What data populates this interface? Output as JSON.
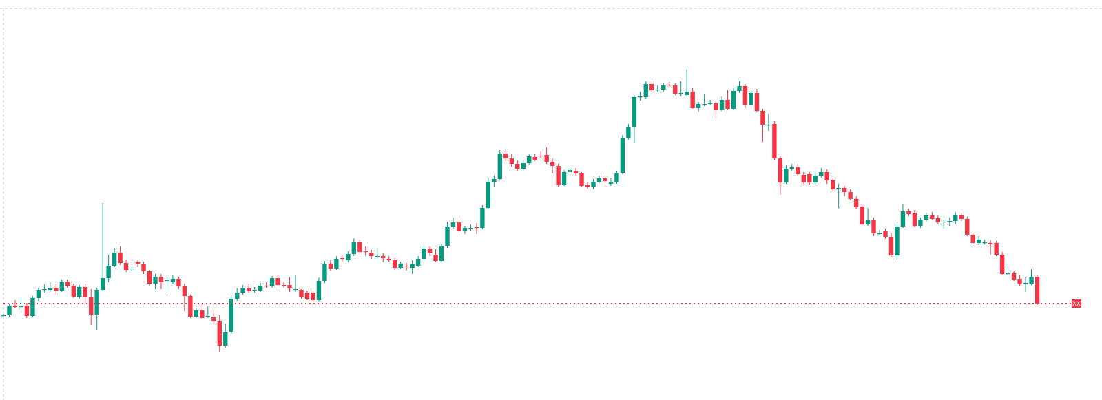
{
  "chart_data": {
    "type": "candlestick",
    "up_color": "#089981",
    "down_color": "#f23645",
    "ylim": [
      19,
      600
    ],
    "last_price_label": "XX",
    "open": [
      141,
      142,
      156,
      155,
      156,
      141,
      167,
      179,
      179,
      182,
      178,
      191,
      185,
      169,
      183,
      168,
      143,
      179,
      196,
      214,
      233,
      218,
      209,
      219,
      216,
      206,
      188,
      198,
      193,
      190,
      195,
      184,
      170,
      140,
      149,
      140,
      139,
      134,
      98,
      118,
      166,
      175,
      181,
      178,
      178,
      185,
      185,
      196,
      186,
      186,
      180,
      179,
      175,
      175,
      164,
      192,
      217,
      210,
      225,
      222,
      231,
      248,
      235,
      233,
      228,
      228,
      224,
      222,
      211,
      214,
      211,
      214,
      224,
      239,
      230,
      221,
      243,
      271,
      277,
      264,
      269,
      270,
      269,
      298,
      336,
      340,
      377,
      370,
      362,
      355,
      363,
      372,
      374,
      375,
      365,
      359,
      331,
      350,
      352,
      348,
      331,
      328,
      336,
      341,
      333,
      335,
      349,
      400,
      416,
      460,
      459,
      478,
      470,
      470,
      477,
      476,
      465,
      462,
      467,
      443,
      449,
      449,
      450,
      440,
      455,
      442,
      468,
      475,
      448,
      465,
      439,
      419,
      420,
      370,
      335,
      355,
      357,
      346,
      347,
      335,
      345,
      350,
      338,
      327,
      327,
      321,
      311,
      300,
      274,
      280,
      261,
      264,
      256,
      229,
      271,
      293,
      291,
      272,
      281,
      287,
      283,
      278,
      279,
      279,
      288,
      282,
      259,
      247,
      248,
      247,
      247,
      230,
      203,
      203,
      195,
      189,
      187,
      198
    ],
    "high": [
      144,
      159,
      164,
      168,
      160,
      170,
      182,
      187,
      190,
      187,
      194,
      194,
      188,
      186,
      188,
      180,
      182,
      305,
      230,
      240,
      242,
      222,
      212,
      223,
      220,
      208,
      202,
      202,
      198,
      200,
      198,
      188,
      172,
      153,
      159,
      155,
      150,
      142,
      130,
      170,
      182,
      186,
      188,
      183,
      189,
      190,
      199,
      200,
      190,
      197,
      200,
      180,
      178,
      178,
      197,
      221,
      222,
      228,
      230,
      235,
      254,
      252,
      242,
      237,
      240,
      232,
      228,
      225,
      220,
      218,
      222,
      228,
      244,
      242,
      238,
      246,
      278,
      284,
      282,
      272,
      274,
      276,
      302,
      342,
      345,
      382,
      380,
      376,
      368,
      368,
      376,
      376,
      380,
      386,
      370,
      362,
      353,
      358,
      356,
      350,
      335,
      340,
      345,
      345,
      342,
      351,
      404,
      420,
      462,
      467,
      482,
      482,
      476,
      480,
      481,
      480,
      482,
      499,
      472,
      452,
      464,
      455,
      455,
      460,
      470,
      472,
      482,
      478,
      470,
      471,
      442,
      435,
      424,
      373,
      360,
      362,
      362,
      350,
      350,
      350,
      356,
      354,
      342,
      333,
      330,
      325,
      315,
      304,
      298,
      284,
      266,
      268,
      262,
      274,
      304,
      297,
      295,
      284,
      291,
      292,
      287,
      282,
      284,
      292,
      291,
      285,
      261,
      257,
      252,
      251,
      250,
      234,
      213,
      207,
      200,
      197,
      209,
      200
    ],
    "low": [
      139,
      140,
      152,
      150,
      138,
      139,
      163,
      175,
      176,
      173,
      176,
      182,
      167,
      166,
      160,
      128,
      120,
      177,
      190,
      212,
      215,
      205,
      207,
      212,
      202,
      185,
      180,
      180,
      175,
      188,
      180,
      148,
      138,
      138,
      136,
      138,
      130,
      88,
      95,
      115,
      163,
      172,
      175,
      175,
      176,
      182,
      182,
      182,
      182,
      176,
      176,
      166,
      164,
      163,
      162,
      189,
      207,
      208,
      220,
      219,
      228,
      230,
      228,
      224,
      224,
      219,
      220,
      208,
      209,
      207,
      202,
      212,
      222,
      228,
      219,
      219,
      240,
      268,
      262,
      260,
      265,
      260,
      267,
      296,
      328,
      338,
      366,
      358,
      352,
      353,
      360,
      366,
      370,
      362,
      348,
      329,
      330,
      348,
      344,
      328,
      326,
      325,
      334,
      329,
      330,
      333,
      347,
      397,
      392,
      454,
      456,
      466,
      466,
      467,
      473,
      462,
      460,
      460,
      442,
      438,
      446,
      448,
      428,
      438,
      440,
      440,
      465,
      443,
      445,
      437,
      394,
      410,
      368,
      317,
      333,
      352,
      344,
      333,
      332,
      333,
      342,
      333,
      322,
      297,
      315,
      309,
      296,
      272,
      272,
      257,
      258,
      253,
      227,
      223,
      269,
      286,
      270,
      269,
      278,
      280,
      275,
      268,
      272,
      274,
      279,
      257,
      245,
      244,
      245,
      230,
      228,
      200,
      200,
      192,
      184,
      176,
      186,
      157
    ],
    "close": [
      142,
      156,
      154,
      155,
      141,
      167,
      179,
      180,
      182,
      178,
      191,
      185,
      169,
      183,
      168,
      143,
      179,
      196,
      214,
      233,
      218,
      208,
      210,
      216,
      206,
      188,
      198,
      190,
      193,
      195,
      184,
      170,
      140,
      149,
      138,
      141,
      134,
      98,
      118,
      166,
      175,
      181,
      177,
      179,
      185,
      184,
      196,
      186,
      185,
      181,
      180,
      168,
      166,
      164,
      192,
      217,
      210,
      224,
      224,
      231,
      248,
      234,
      234,
      228,
      228,
      225,
      222,
      211,
      217,
      213,
      216,
      224,
      239,
      232,
      221,
      243,
      271,
      277,
      264,
      269,
      269,
      269,
      298,
      336,
      340,
      377,
      370,
      362,
      355,
      363,
      373,
      368,
      373,
      365,
      359,
      331,
      350,
      353,
      348,
      330,
      328,
      336,
      341,
      337,
      336,
      349,
      400,
      416,
      459,
      460,
      478,
      469,
      470,
      476,
      476,
      464,
      465,
      467,
      443,
      449,
      449,
      451,
      440,
      455,
      442,
      468,
      475,
      448,
      465,
      439,
      419,
      419,
      370,
      335,
      355,
      357,
      347,
      335,
      335,
      345,
      350,
      338,
      325,
      327,
      321,
      311,
      299,
      274,
      280,
      261,
      261,
      256,
      229,
      271,
      293,
      289,
      272,
      281,
      287,
      282,
      277,
      278,
      279,
      288,
      282,
      259,
      247,
      252,
      248,
      245,
      230,
      202,
      203,
      194,
      187,
      189,
      198,
      159
    ]
  }
}
